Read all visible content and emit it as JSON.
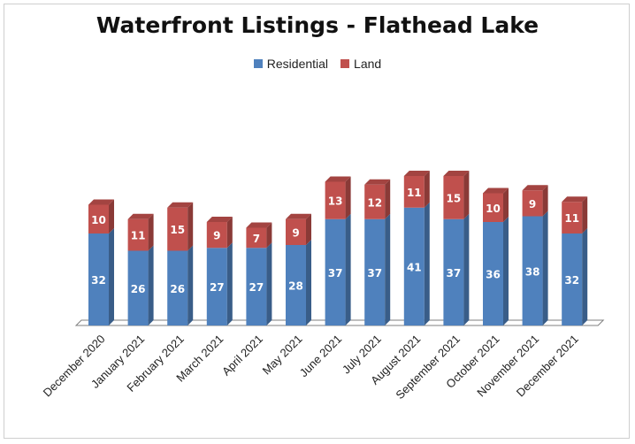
{
  "chart_data": {
    "type": "bar",
    "stacked": true,
    "title": "Waterfront Listings - Flathead Lake",
    "xlabel": "",
    "ylabel": "",
    "ylim": [
      0,
      60
    ],
    "grid": false,
    "legend_position": "top",
    "categories": [
      "December 2020",
      "January 2021",
      "February 2021",
      "March 2021",
      "April 2021",
      "May 2021",
      "June 2021",
      "July 2021",
      "August 2021",
      "September 2021",
      "October 2021",
      "November 2021",
      "December 2021"
    ],
    "series": [
      {
        "name": "Residential",
        "color": "#4f81bd",
        "values": [
          32,
          26,
          26,
          27,
          27,
          28,
          37,
          37,
          41,
          37,
          36,
          38,
          32
        ]
      },
      {
        "name": "Land",
        "color": "#c0504d",
        "values": [
          10,
          11,
          15,
          9,
          7,
          9,
          13,
          12,
          11,
          15,
          10,
          9,
          11
        ]
      }
    ]
  }
}
